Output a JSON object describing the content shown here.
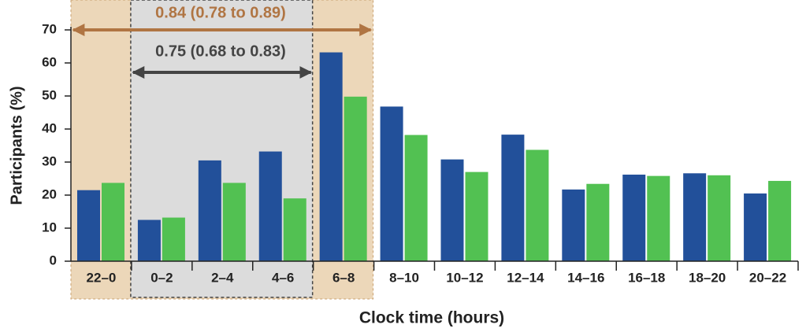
{
  "chart_data": {
    "type": "bar",
    "categories": [
      "22–0",
      "0–2",
      "2–4",
      "4–6",
      "6–8",
      "8–10",
      "10–12",
      "12–14",
      "14–16",
      "16–18",
      "18–20",
      "20–22"
    ],
    "series": [
      {
        "color": "#22509a",
        "values": [
          21.5,
          12.5,
          30.5,
          33.2,
          63.2,
          46.8,
          30.8,
          38.3,
          21.7,
          26.2,
          26.6,
          20.5
        ]
      },
      {
        "color": "#52c152",
        "values": [
          23.7,
          13.2,
          23.7,
          19,
          49.8,
          38.2,
          27,
          33.7,
          23.4,
          25.8,
          26,
          24.3
        ]
      }
    ],
    "ylim": [
      0,
      70
    ],
    "yticks": [
      0,
      10,
      20,
      30,
      40,
      50,
      60,
      70
    ],
    "ylabel": "Participants (%)",
    "xlabel": "Clock time (hours)",
    "annotations": [
      "0.84 (0.78 to 0.89)",
      "0.75 (0.68 to 0.83)"
    ]
  }
}
